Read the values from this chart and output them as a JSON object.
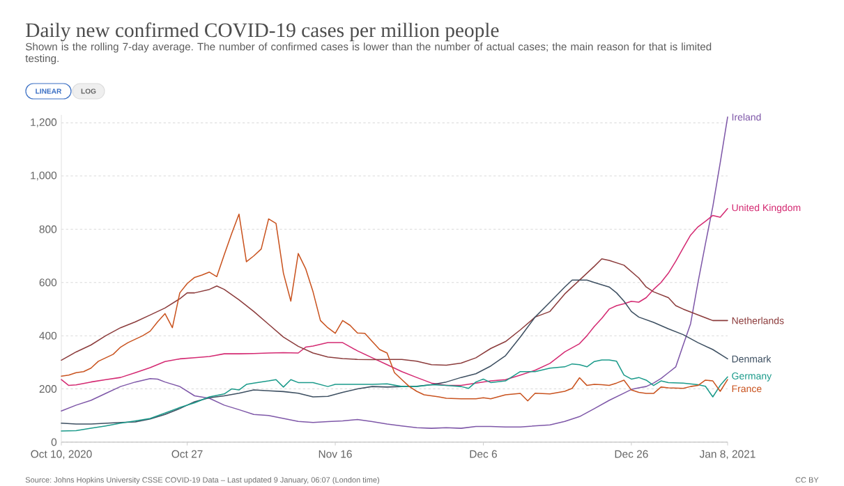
{
  "chart_data": {
    "type": "line",
    "title": "Daily new confirmed COVID-19 cases per million people",
    "subtitle": "Shown is the rolling 7-day average. The number of confirmed cases is lower than the number of actual cases; the main reason for that is limited testing.",
    "annotations": [
      "LINEAR",
      "LOG",
      "Source: Johns Hopkins University CSSE COVID-19 Data – Last updated 9 January, 06:07 (London time)",
      "CC BY"
    ],
    "xlim": [
      "2020-10-10",
      "2021-01-08"
    ],
    "xticks": [
      {
        "value": "2020-10-10",
        "label": "Oct 10, 2020"
      },
      {
        "value": "2020-10-27",
        "label": "Oct 27"
      },
      {
        "value": "2020-11-16",
        "label": "Nov 16"
      },
      {
        "value": "2020-12-06",
        "label": "Dec 6"
      },
      {
        "value": "2020-12-26",
        "label": "Dec 26"
      },
      {
        "value": "2021-01-08",
        "label": "Jan 8, 2021"
      }
    ],
    "ylim": [
      0,
      1230
    ],
    "yticks": [
      0,
      200,
      400,
      600,
      800,
      {
        "value": 1000,
        "label": "1,000"
      },
      {
        "value": 1200,
        "label": "1,200"
      }
    ],
    "grid": "y",
    "series": [
      {
        "name": "Ireland",
        "color": "#7e57a8",
        "x": [
          "2020-10-10",
          "2020-10-12",
          "2020-10-14",
          "2020-10-16",
          "2020-10-18",
          "2020-10-20",
          "2020-10-22",
          "2020-10-23",
          "2020-10-24",
          "2020-10-26",
          "2020-10-28",
          "2020-10-30",
          "2020-11-01",
          "2020-11-03",
          "2020-11-05",
          "2020-11-07",
          "2020-11-09",
          "2020-11-11",
          "2020-11-13",
          "2020-11-15",
          "2020-11-17",
          "2020-11-19",
          "2020-11-21",
          "2020-11-23",
          "2020-11-25",
          "2020-11-27",
          "2020-11-29",
          "2020-12-01",
          "2020-12-03",
          "2020-12-05",
          "2020-12-07",
          "2020-12-09",
          "2020-12-11",
          "2020-12-13",
          "2020-12-15",
          "2020-12-17",
          "2020-12-19",
          "2020-12-21",
          "2020-12-23",
          "2020-12-25",
          "2020-12-26",
          "2020-12-27",
          "2020-12-28",
          "2020-12-29",
          "2020-12-30",
          "2020-12-31",
          "2021-01-01",
          "2021-01-02",
          "2021-01-03",
          "2021-01-04",
          "2021-01-05",
          "2021-01-06",
          "2021-01-07",
          "2021-01-08"
        ],
        "values": [
          117,
          139,
          157,
          183,
          209,
          226,
          239,
          237,
          226,
          209,
          174,
          165,
          139,
          122,
          104,
          100,
          89,
          78,
          74,
          77,
          80,
          85,
          77,
          68,
          61,
          54,
          52,
          54,
          52,
          59,
          59,
          57,
          57,
          61,
          65,
          78,
          96,
          126,
          157,
          184,
          198,
          204,
          209,
          222,
          239,
          261,
          283,
          365,
          445,
          600,
          745,
          885,
          1050,
          1222
        ]
      },
      {
        "name": "United Kingdom",
        "color": "#d42a72",
        "x": [
          "2020-10-10",
          "2020-10-11",
          "2020-10-12",
          "2020-10-14",
          "2020-10-16",
          "2020-10-18",
          "2020-10-20",
          "2020-10-22",
          "2020-10-24",
          "2020-10-26",
          "2020-10-28",
          "2020-10-30",
          "2020-11-01",
          "2020-11-03",
          "2020-11-05",
          "2020-11-07",
          "2020-11-09",
          "2020-11-11",
          "2020-11-12",
          "2020-11-13",
          "2020-11-15",
          "2020-11-17",
          "2020-11-19",
          "2020-11-21",
          "2020-11-23",
          "2020-11-25",
          "2020-11-27",
          "2020-11-29",
          "2020-12-01",
          "2020-12-03",
          "2020-12-05",
          "2020-12-07",
          "2020-12-09",
          "2020-12-11",
          "2020-12-13",
          "2020-12-15",
          "2020-12-17",
          "2020-12-19",
          "2020-12-20",
          "2020-12-21",
          "2020-12-22",
          "2020-12-23",
          "2020-12-24",
          "2020-12-25",
          "2020-12-26",
          "2020-12-27",
          "2020-12-28",
          "2020-12-29",
          "2020-12-30",
          "2020-12-31",
          "2021-01-01",
          "2021-01-02",
          "2021-01-03",
          "2021-01-04",
          "2021-01-05",
          "2021-01-06",
          "2021-01-07",
          "2021-01-08"
        ],
        "values": [
          235,
          213,
          215,
          226,
          235,
          243,
          261,
          280,
          303,
          313,
          317,
          322,
          332,
          332,
          333,
          335,
          336,
          335,
          357,
          361,
          374,
          374,
          343,
          317,
          291,
          265,
          243,
          222,
          213,
          213,
          222,
          230,
          235,
          252,
          270,
          296,
          339,
          370,
          400,
          435,
          465,
          500,
          513,
          520,
          529,
          526,
          543,
          574,
          600,
          635,
          680,
          730,
          778,
          809,
          830,
          852,
          845,
          878
        ]
      },
      {
        "name": "Netherlands",
        "color": "#8c3c3c",
        "x": [
          "2020-10-10",
          "2020-10-12",
          "2020-10-14",
          "2020-10-16",
          "2020-10-18",
          "2020-10-20",
          "2020-10-22",
          "2020-10-24",
          "2020-10-26",
          "2020-10-27",
          "2020-10-28",
          "2020-10-30",
          "2020-10-31",
          "2020-11-01",
          "2020-11-03",
          "2020-11-05",
          "2020-11-07",
          "2020-11-09",
          "2020-11-11",
          "2020-11-13",
          "2020-11-15",
          "2020-11-17",
          "2020-11-19",
          "2020-11-21",
          "2020-11-23",
          "2020-11-25",
          "2020-11-27",
          "2020-11-29",
          "2020-12-01",
          "2020-12-03",
          "2020-12-05",
          "2020-12-07",
          "2020-12-09",
          "2020-12-11",
          "2020-12-13",
          "2020-12-15",
          "2020-12-17",
          "2020-12-19",
          "2020-12-21",
          "2020-12-22",
          "2020-12-23",
          "2020-12-25",
          "2020-12-27",
          "2020-12-28",
          "2020-12-29",
          "2020-12-31",
          "2021-01-01",
          "2021-01-02",
          "2021-01-04",
          "2021-01-06",
          "2021-01-08"
        ],
        "values": [
          308,
          339,
          365,
          400,
          430,
          452,
          478,
          504,
          539,
          561,
          561,
          574,
          587,
          574,
          535,
          491,
          443,
          395,
          360,
          335,
          320,
          314,
          311,
          310,
          311,
          311,
          304,
          291,
          289,
          297,
          317,
          352,
          378,
          422,
          470,
          491,
          557,
          609,
          661,
          689,
          683,
          665,
          617,
          583,
          565,
          543,
          513,
          500,
          478,
          457,
          457
        ]
      },
      {
        "name": "Denmark",
        "color": "#3d4f61",
        "x": [
          "2020-10-10",
          "2020-10-12",
          "2020-10-14",
          "2020-10-16",
          "2020-10-18",
          "2020-10-20",
          "2020-10-22",
          "2020-10-24",
          "2020-10-26",
          "2020-10-28",
          "2020-10-30",
          "2020-11-01",
          "2020-11-03",
          "2020-11-05",
          "2020-11-07",
          "2020-11-09",
          "2020-11-11",
          "2020-11-13",
          "2020-11-15",
          "2020-11-17",
          "2020-11-19",
          "2020-11-21",
          "2020-11-23",
          "2020-11-25",
          "2020-11-27",
          "2020-11-29",
          "2020-12-01",
          "2020-12-03",
          "2020-12-05",
          "2020-12-07",
          "2020-12-09",
          "2020-12-11",
          "2020-12-13",
          "2020-12-15",
          "2020-12-17",
          "2020-12-18",
          "2020-12-20",
          "2020-12-21",
          "2020-12-23",
          "2020-12-24",
          "2020-12-25",
          "2020-12-26",
          "2020-12-27",
          "2020-12-29",
          "2020-12-31",
          "2021-01-02",
          "2021-01-04",
          "2021-01-06",
          "2021-01-08"
        ],
        "values": [
          71,
          68,
          68,
          71,
          74,
          76,
          87,
          104,
          126,
          152,
          167,
          174,
          184,
          196,
          193,
          190,
          184,
          170,
          172,
          187,
          200,
          209,
          207,
          209,
          210,
          216,
          226,
          243,
          257,
          286,
          325,
          395,
          470,
          526,
          583,
          609,
          609,
          600,
          583,
          561,
          530,
          491,
          470,
          450,
          426,
          404,
          374,
          348,
          313
        ]
      },
      {
        "name": "Germany",
        "color": "#1a9a8a",
        "x": [
          "2020-10-10",
          "2020-10-12",
          "2020-10-14",
          "2020-10-16",
          "2020-10-18",
          "2020-10-20",
          "2020-10-22",
          "2020-10-24",
          "2020-10-26",
          "2020-10-28",
          "2020-10-30",
          "2020-11-01",
          "2020-11-02",
          "2020-11-03",
          "2020-11-04",
          "2020-11-05",
          "2020-11-07",
          "2020-11-08",
          "2020-11-09",
          "2020-11-10",
          "2020-11-11",
          "2020-11-13",
          "2020-11-15",
          "2020-11-16",
          "2020-11-19",
          "2020-11-21",
          "2020-11-23",
          "2020-11-25",
          "2020-11-27",
          "2020-11-29",
          "2020-12-01",
          "2020-12-03",
          "2020-12-04",
          "2020-12-05",
          "2020-12-06",
          "2020-12-07",
          "2020-12-09",
          "2020-12-11",
          "2020-12-13",
          "2020-12-15",
          "2020-12-17",
          "2020-12-18",
          "2020-12-19",
          "2020-12-20",
          "2020-12-21",
          "2020-12-22",
          "2020-12-23",
          "2020-12-24",
          "2020-12-25",
          "2020-12-26",
          "2020-12-27",
          "2020-12-28",
          "2020-12-29",
          "2020-12-30",
          "2020-12-31",
          "2021-01-02",
          "2021-01-04",
          "2021-01-05",
          "2021-01-06",
          "2021-01-07",
          "2021-01-08"
        ],
        "values": [
          42,
          43,
          52,
          61,
          71,
          80,
          89,
          109,
          130,
          148,
          170,
          181,
          200,
          196,
          217,
          222,
          230,
          235,
          207,
          235,
          224,
          224,
          209,
          217,
          217,
          217,
          219,
          209,
          209,
          216,
          213,
          209,
          202,
          226,
          237,
          224,
          230,
          265,
          265,
          278,
          283,
          294,
          291,
          283,
          303,
          309,
          309,
          304,
          252,
          237,
          243,
          233,
          213,
          230,
          224,
          222,
          216,
          210,
          170,
          213,
          245
        ]
      },
      {
        "name": "France",
        "color": "#c9531f",
        "x": [
          "2020-10-10",
          "2020-10-11",
          "2020-10-12",
          "2020-10-13",
          "2020-10-14",
          "2020-10-15",
          "2020-10-16",
          "2020-10-17",
          "2020-10-18",
          "2020-10-19",
          "2020-10-20",
          "2020-10-21",
          "2020-10-22",
          "2020-10-23",
          "2020-10-24",
          "2020-10-25",
          "2020-10-26",
          "2020-10-27",
          "2020-10-28",
          "2020-10-29",
          "2020-10-30",
          "2020-10-31",
          "2020-11-01",
          "2020-11-02",
          "2020-11-03",
          "2020-11-04",
          "2020-11-05",
          "2020-11-06",
          "2020-11-07",
          "2020-11-08",
          "2020-11-09",
          "2020-11-10",
          "2020-11-11",
          "2020-11-12",
          "2020-11-13",
          "2020-11-14",
          "2020-11-15",
          "2020-11-16",
          "2020-11-17",
          "2020-11-18",
          "2020-11-19",
          "2020-11-20",
          "2020-11-21",
          "2020-11-22",
          "2020-11-23",
          "2020-11-24",
          "2020-11-25",
          "2020-11-26",
          "2020-11-27",
          "2020-11-28",
          "2020-11-29",
          "2020-11-30",
          "2020-12-01",
          "2020-12-03",
          "2020-12-05",
          "2020-12-06",
          "2020-12-07",
          "2020-12-09",
          "2020-12-11",
          "2020-12-12",
          "2020-12-13",
          "2020-12-15",
          "2020-12-17",
          "2020-12-18",
          "2020-12-19",
          "2020-12-20",
          "2020-12-21",
          "2020-12-22",
          "2020-12-23",
          "2020-12-24",
          "2020-12-25",
          "2020-12-26",
          "2020-12-27",
          "2020-12-28",
          "2020-12-29",
          "2020-12-30",
          "2020-12-31",
          "2021-01-02",
          "2021-01-03",
          "2021-01-04",
          "2021-01-05",
          "2021-01-06",
          "2021-01-07",
          "2021-01-08"
        ],
        "values": [
          248,
          252,
          261,
          265,
          278,
          304,
          317,
          330,
          357,
          374,
          387,
          400,
          417,
          452,
          483,
          430,
          561,
          596,
          619,
          628,
          639,
          622,
          704,
          783,
          857,
          678,
          700,
          726,
          839,
          822,
          635,
          530,
          709,
          652,
          565,
          457,
          430,
          409,
          457,
          439,
          410,
          409,
          378,
          348,
          335,
          261,
          235,
          209,
          191,
          178,
          174,
          170,
          165,
          163,
          163,
          167,
          163,
          178,
          183,
          155,
          184,
          181,
          191,
          202,
          242,
          213,
          217,
          216,
          213,
          222,
          233,
          196,
          187,
          183,
          183,
          207,
          204,
          202,
          209,
          213,
          233,
          230,
          191,
          235
        ]
      }
    ]
  }
}
